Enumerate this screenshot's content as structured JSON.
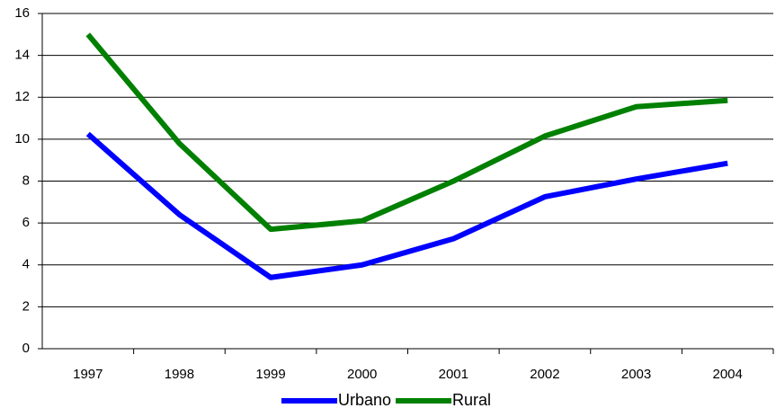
{
  "chart_data": {
    "type": "line",
    "categories": [
      "1997",
      "1998",
      "1999",
      "2000",
      "2001",
      "2002",
      "2003",
      "2004"
    ],
    "series": [
      {
        "name": "Urbano",
        "color": "#0000ff",
        "values": [
          10.25,
          6.4,
          3.4,
          4.0,
          5.25,
          7.25,
          8.1,
          8.85
        ]
      },
      {
        "name": "Rural",
        "color": "#008000",
        "values": [
          15.0,
          9.8,
          5.7,
          6.1,
          8.0,
          10.15,
          11.55,
          11.85
        ]
      }
    ],
    "ylim": [
      0,
      16
    ],
    "yticks": [
      0,
      2,
      4,
      6,
      8,
      10,
      12,
      14,
      16
    ],
    "grid": true,
    "legend": "bottom"
  }
}
